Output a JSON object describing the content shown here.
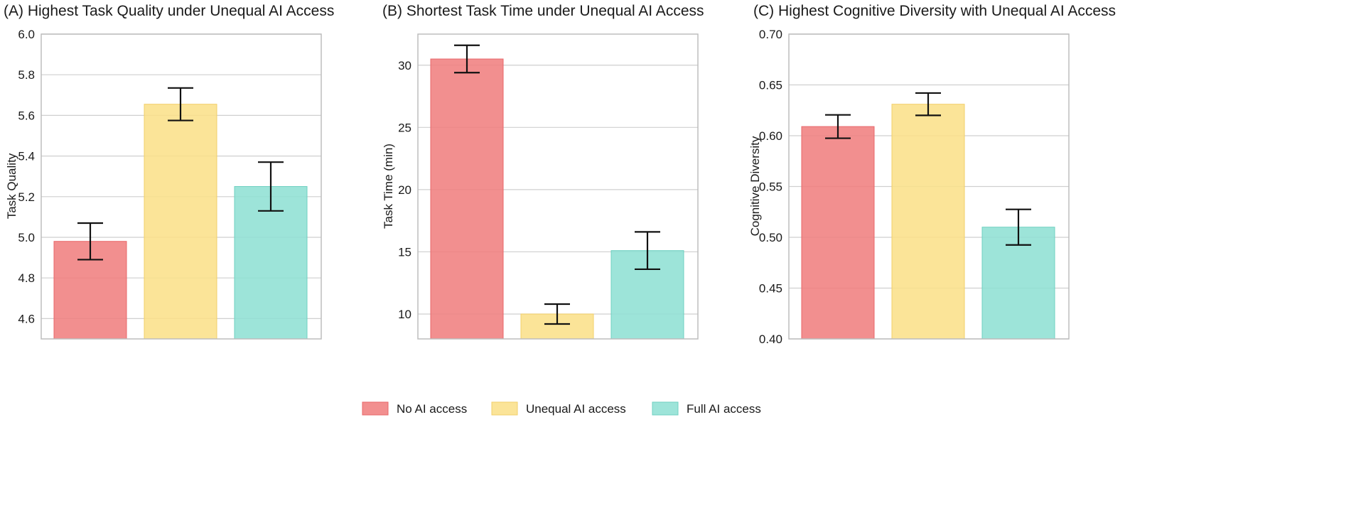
{
  "colors": {
    "no_ai": "#f08080",
    "unequal_ai": "#fbe08a",
    "full_ai": "#90e0d4"
  },
  "legend": {
    "items": [
      {
        "label": "No AI access",
        "color": "#f08080"
      },
      {
        "label": "Unequal AI access",
        "color": "#fbe08a"
      },
      {
        "label": "Full AI access",
        "color": "#90e0d4"
      }
    ]
  },
  "chart_data": [
    {
      "type": "bar",
      "title": "(A) Highest Task Quality under Unequal AI Access",
      "xlabel": "",
      "ylabel": "Task Quality",
      "ylim": [
        4.5,
        6.0
      ],
      "yticks": [
        "4.6",
        "4.8",
        "5.0",
        "5.2",
        "5.4",
        "5.6",
        "5.8",
        "6.0"
      ],
      "categories": [
        "No AI access",
        "Unequal AI access",
        "Full AI access"
      ],
      "values": [
        4.98,
        5.655,
        5.25
      ],
      "errors": [
        0.09,
        0.08,
        0.12
      ],
      "grid": true
    },
    {
      "type": "bar",
      "title": "(B) Shortest Task Time under Unequal AI Access",
      "xlabel": "",
      "ylabel": "Task Time (min)",
      "ylim": [
        8.0,
        32.5
      ],
      "yticks": [
        "10",
        "15",
        "20",
        "25",
        "30"
      ],
      "categories": [
        "No AI access",
        "Unequal AI access",
        "Full AI access"
      ],
      "values": [
        30.5,
        10.0,
        15.1
      ],
      "errors": [
        1.1,
        0.8,
        1.5
      ],
      "grid": true
    },
    {
      "type": "bar",
      "title": "(C) Highest Cognitive Diversity with Unequal AI Access",
      "xlabel": "",
      "ylabel": "Cognitive Diversity",
      "ylim": [
        0.4,
        0.7
      ],
      "yticks": [
        "0.40",
        "0.45",
        "0.50",
        "0.55",
        "0.60",
        "0.65",
        "0.70"
      ],
      "categories": [
        "No AI access",
        "Unequal AI access",
        "Full AI access"
      ],
      "values": [
        0.609,
        0.631,
        0.51
      ],
      "errors": [
        0.0115,
        0.011,
        0.0175
      ],
      "grid": true
    }
  ]
}
